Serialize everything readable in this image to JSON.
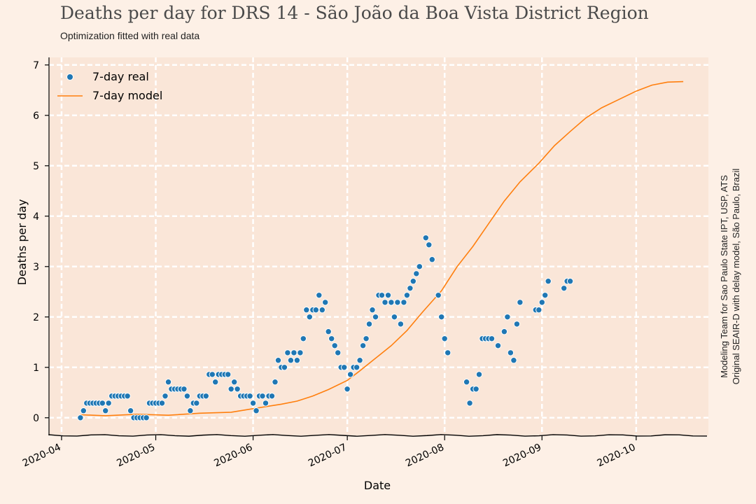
{
  "title": "Deaths per day for DRS 14 - São João da Boa Vista District Region",
  "subtitle": "Optimization fitted with real data",
  "credits": {
    "line1": "Modeling Team for Sao Paulo State IPT, USP, ATS",
    "line2": "Original SEAIR-D with delay model, São Paulo, Brazil"
  },
  "colors": {
    "background": "#fdf0e6",
    "plot_area": "#fae6d8",
    "grid": "#ffffff",
    "real": "#1f77b4",
    "model": "#ff7f0e"
  },
  "chart_data": {
    "type": "scatter",
    "title": "Deaths per day for DRS 14 - São João da Boa Vista District Region",
    "subtitle": "Optimization fitted with real data",
    "xlabel": "Date",
    "ylabel": "Deaths per day",
    "xlim": [
      "2020-03-28",
      "2020-10-24"
    ],
    "ylim": [
      -0.35,
      7.15
    ],
    "x_ticks": [
      "2020-04-01",
      "2020-05-01",
      "2020-06-01",
      "2020-07-01",
      "2020-08-01",
      "2020-09-01",
      "2020-10-01"
    ],
    "x_tick_labels": [
      "2020-04",
      "2020-05",
      "2020-06",
      "2020-07",
      "2020-08",
      "2020-09",
      "2020-10"
    ],
    "y_ticks": [
      0,
      1,
      2,
      3,
      4,
      5,
      6,
      7
    ],
    "grid": true,
    "legend": {
      "placement": "upper-left",
      "entries": [
        "7-day real",
        "7-day model"
      ]
    },
    "series": [
      {
        "name": "7-day real",
        "kind": "scatter",
        "points": [
          [
            "2020-04-07",
            0.0
          ],
          [
            "2020-04-08",
            0.14
          ],
          [
            "2020-04-09",
            0.29
          ],
          [
            "2020-04-10",
            0.29
          ],
          [
            "2020-04-11",
            0.29
          ],
          [
            "2020-04-12",
            0.29
          ],
          [
            "2020-04-13",
            0.29
          ],
          [
            "2020-04-14",
            0.29
          ],
          [
            "2020-04-15",
            0.14
          ],
          [
            "2020-04-16",
            0.29
          ],
          [
            "2020-04-17",
            0.43
          ],
          [
            "2020-04-18",
            0.43
          ],
          [
            "2020-04-19",
            0.43
          ],
          [
            "2020-04-20",
            0.43
          ],
          [
            "2020-04-21",
            0.43
          ],
          [
            "2020-04-22",
            0.43
          ],
          [
            "2020-04-23",
            0.14
          ],
          [
            "2020-04-24",
            0.0
          ],
          [
            "2020-04-25",
            0.0
          ],
          [
            "2020-04-26",
            0.0
          ],
          [
            "2020-04-27",
            0.0
          ],
          [
            "2020-04-28",
            0.0
          ],
          [
            "2020-04-29",
            0.29
          ],
          [
            "2020-04-30",
            0.29
          ],
          [
            "2020-05-01",
            0.29
          ],
          [
            "2020-05-02",
            0.29
          ],
          [
            "2020-05-03",
            0.29
          ],
          [
            "2020-05-04",
            0.43
          ],
          [
            "2020-05-05",
            0.71
          ],
          [
            "2020-05-06",
            0.57
          ],
          [
            "2020-05-07",
            0.57
          ],
          [
            "2020-05-08",
            0.57
          ],
          [
            "2020-05-09",
            0.57
          ],
          [
            "2020-05-10",
            0.57
          ],
          [
            "2020-05-11",
            0.43
          ],
          [
            "2020-05-12",
            0.14
          ],
          [
            "2020-05-13",
            0.29
          ],
          [
            "2020-05-14",
            0.29
          ],
          [
            "2020-05-15",
            0.43
          ],
          [
            "2020-05-16",
            0.43
          ],
          [
            "2020-05-17",
            0.43
          ],
          [
            "2020-05-18",
            0.86
          ],
          [
            "2020-05-19",
            0.86
          ],
          [
            "2020-05-20",
            0.71
          ],
          [
            "2020-05-21",
            0.86
          ],
          [
            "2020-05-22",
            0.86
          ],
          [
            "2020-05-23",
            0.86
          ],
          [
            "2020-05-24",
            0.86
          ],
          [
            "2020-05-25",
            0.57
          ],
          [
            "2020-05-26",
            0.71
          ],
          [
            "2020-05-27",
            0.57
          ],
          [
            "2020-05-28",
            0.43
          ],
          [
            "2020-05-29",
            0.43
          ],
          [
            "2020-05-30",
            0.43
          ],
          [
            "2020-05-31",
            0.43
          ],
          [
            "2020-06-01",
            0.29
          ],
          [
            "2020-06-02",
            0.14
          ],
          [
            "2020-06-03",
            0.43
          ],
          [
            "2020-06-04",
            0.43
          ],
          [
            "2020-06-05",
            0.29
          ],
          [
            "2020-06-06",
            0.43
          ],
          [
            "2020-06-07",
            0.43
          ],
          [
            "2020-06-08",
            0.71
          ],
          [
            "2020-06-09",
            1.14
          ],
          [
            "2020-06-10",
            1.0
          ],
          [
            "2020-06-11",
            1.0
          ],
          [
            "2020-06-12",
            1.29
          ],
          [
            "2020-06-13",
            1.14
          ],
          [
            "2020-06-14",
            1.29
          ],
          [
            "2020-06-15",
            1.14
          ],
          [
            "2020-06-16",
            1.29
          ],
          [
            "2020-06-17",
            1.57
          ],
          [
            "2020-06-18",
            2.14
          ],
          [
            "2020-06-19",
            2.0
          ],
          [
            "2020-06-20",
            2.14
          ],
          [
            "2020-06-21",
            2.14
          ],
          [
            "2020-06-22",
            2.43
          ],
          [
            "2020-06-23",
            2.14
          ],
          [
            "2020-06-24",
            2.29
          ],
          [
            "2020-06-25",
            1.71
          ],
          [
            "2020-06-26",
            1.57
          ],
          [
            "2020-06-27",
            1.43
          ],
          [
            "2020-06-28",
            1.29
          ],
          [
            "2020-06-29",
            1.0
          ],
          [
            "2020-06-30",
            1.0
          ],
          [
            "2020-07-01",
            0.57
          ],
          [
            "2020-07-02",
            0.86
          ],
          [
            "2020-07-03",
            1.0
          ],
          [
            "2020-07-04",
            1.0
          ],
          [
            "2020-07-05",
            1.14
          ],
          [
            "2020-07-06",
            1.43
          ],
          [
            "2020-07-07",
            1.57
          ],
          [
            "2020-07-08",
            1.86
          ],
          [
            "2020-07-09",
            2.14
          ],
          [
            "2020-07-10",
            2.0
          ],
          [
            "2020-07-11",
            2.43
          ],
          [
            "2020-07-12",
            2.43
          ],
          [
            "2020-07-13",
            2.29
          ],
          [
            "2020-07-14",
            2.43
          ],
          [
            "2020-07-15",
            2.29
          ],
          [
            "2020-07-16",
            2.0
          ],
          [
            "2020-07-17",
            2.29
          ],
          [
            "2020-07-18",
            1.86
          ],
          [
            "2020-07-19",
            2.29
          ],
          [
            "2020-07-20",
            2.43
          ],
          [
            "2020-07-21",
            2.57
          ],
          [
            "2020-07-22",
            2.71
          ],
          [
            "2020-07-23",
            2.86
          ],
          [
            "2020-07-24",
            3.0
          ],
          [
            "2020-07-26",
            3.57
          ],
          [
            "2020-07-27",
            3.43
          ],
          [
            "2020-07-28",
            3.14
          ],
          [
            "2020-07-30",
            2.43
          ],
          [
            "2020-07-31",
            2.0
          ],
          [
            "2020-08-01",
            1.57
          ],
          [
            "2020-08-02",
            1.29
          ],
          [
            "2020-08-08",
            0.71
          ],
          [
            "2020-08-09",
            0.29
          ],
          [
            "2020-08-10",
            0.57
          ],
          [
            "2020-08-11",
            0.57
          ],
          [
            "2020-08-12",
            0.86
          ],
          [
            "2020-08-13",
            1.57
          ],
          [
            "2020-08-14",
            1.57
          ],
          [
            "2020-08-15",
            1.57
          ],
          [
            "2020-08-16",
            1.57
          ],
          [
            "2020-08-18",
            1.43
          ],
          [
            "2020-08-20",
            1.71
          ],
          [
            "2020-08-21",
            2.0
          ],
          [
            "2020-08-22",
            1.29
          ],
          [
            "2020-08-23",
            1.14
          ],
          [
            "2020-08-24",
            1.86
          ],
          [
            "2020-08-25",
            2.29
          ],
          [
            "2020-08-30",
            2.14
          ],
          [
            "2020-08-31",
            2.14
          ],
          [
            "2020-09-01",
            2.29
          ],
          [
            "2020-09-02",
            2.43
          ],
          [
            "2020-09-03",
            2.71
          ],
          [
            "2020-09-08",
            2.57
          ],
          [
            "2020-09-09",
            2.71
          ],
          [
            "2020-09-10",
            2.71
          ]
        ]
      },
      {
        "name": "7-day model",
        "kind": "line",
        "points": [
          [
            "2020-04-07",
            0.06
          ],
          [
            "2020-04-15",
            0.04
          ],
          [
            "2020-04-25",
            0.07
          ],
          [
            "2020-05-05",
            0.05
          ],
          [
            "2020-05-15",
            0.09
          ],
          [
            "2020-05-25",
            0.11
          ],
          [
            "2020-06-01",
            0.18
          ],
          [
            "2020-06-10",
            0.27
          ],
          [
            "2020-06-15",
            0.33
          ],
          [
            "2020-06-20",
            0.43
          ],
          [
            "2020-06-25",
            0.56
          ],
          [
            "2020-07-01",
            0.74
          ],
          [
            "2020-07-05",
            0.93
          ],
          [
            "2020-07-10",
            1.18
          ],
          [
            "2020-07-15",
            1.43
          ],
          [
            "2020-07-20",
            1.73
          ],
          [
            "2020-07-25",
            2.1
          ],
          [
            "2020-07-31",
            2.52
          ],
          [
            "2020-08-05",
            3.0
          ],
          [
            "2020-08-10",
            3.4
          ],
          [
            "2020-08-15",
            3.85
          ],
          [
            "2020-08-20",
            4.3
          ],
          [
            "2020-08-25",
            4.68
          ],
          [
            "2020-08-31",
            5.05
          ],
          [
            "2020-09-05",
            5.4
          ],
          [
            "2020-09-10",
            5.68
          ],
          [
            "2020-09-15",
            5.95
          ],
          [
            "2020-09-20",
            6.15
          ],
          [
            "2020-09-25",
            6.3
          ],
          [
            "2020-10-01",
            6.48
          ],
          [
            "2020-10-06",
            6.6
          ],
          [
            "2020-10-11",
            6.66
          ],
          [
            "2020-10-16",
            6.67
          ]
        ]
      }
    ]
  }
}
